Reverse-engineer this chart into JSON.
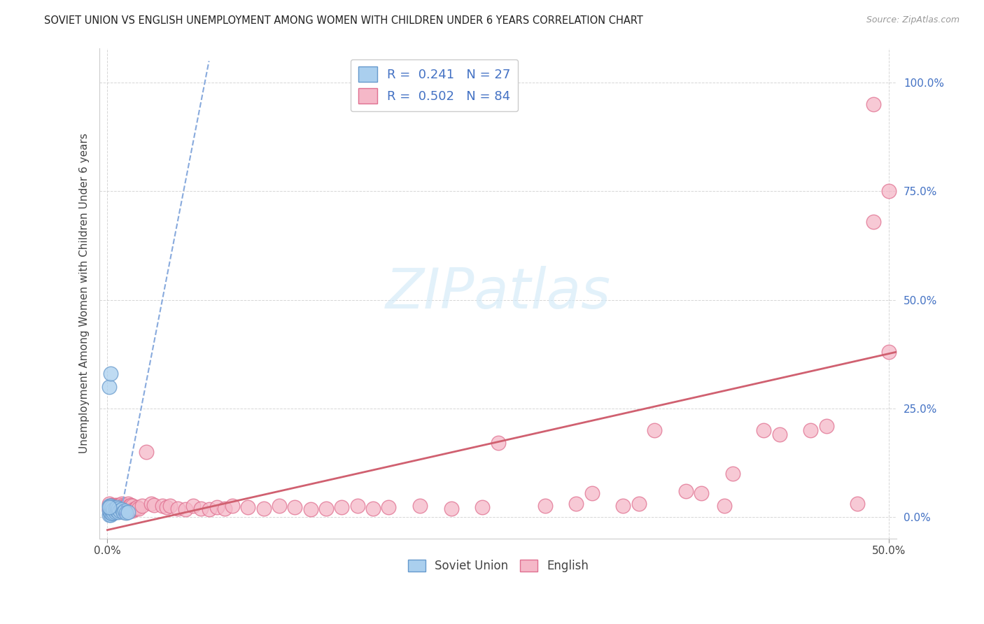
{
  "title": "SOVIET UNION VS ENGLISH UNEMPLOYMENT AMONG WOMEN WITH CHILDREN UNDER 6 YEARS CORRELATION CHART",
  "source": "Source: ZipAtlas.com",
  "ylabel": "Unemployment Among Women with Children Under 6 years",
  "xlim": [
    -0.005,
    0.505
  ],
  "ylim": [
    -0.05,
    1.08
  ],
  "xticks": [
    0.0,
    0.5
  ],
  "xtick_labels": [
    "0.0%",
    "50.0%"
  ],
  "yticks": [
    0.0,
    0.25,
    0.5,
    0.75,
    1.0
  ],
  "ytick_labels": [
    "0.0%",
    "25.0%",
    "50.0%",
    "75.0%",
    "100.0%"
  ],
  "legend_r1": "R =  0.241",
  "legend_n1": "N = 27",
  "legend_r2": "R =  0.502",
  "legend_n2": "N = 84",
  "soviet_color": "#aacfee",
  "soviet_edge_color": "#6699cc",
  "english_color": "#f5b8c8",
  "english_edge_color": "#e07090",
  "trendline_soviet_color": "#88aadd",
  "trendline_english_color": "#d06070",
  "watermark": "ZIPatlas",
  "background_color": "#ffffff",
  "soviet_scatter_x": [
    0.001,
    0.001,
    0.001,
    0.002,
    0.002,
    0.002,
    0.002,
    0.003,
    0.003,
    0.003,
    0.004,
    0.004,
    0.005,
    0.005,
    0.006,
    0.006,
    0.007,
    0.007,
    0.008,
    0.009,
    0.01,
    0.011,
    0.012,
    0.013,
    0.001,
    0.002,
    0.001
  ],
  "soviet_scatter_y": [
    0.005,
    0.015,
    0.025,
    0.005,
    0.01,
    0.02,
    0.025,
    0.008,
    0.015,
    0.022,
    0.01,
    0.018,
    0.012,
    0.02,
    0.015,
    0.022,
    0.012,
    0.02,
    0.015,
    0.018,
    0.012,
    0.015,
    0.01,
    0.012,
    0.3,
    0.33,
    0.022
  ],
  "english_scatter_x": [
    0.001,
    0.001,
    0.002,
    0.002,
    0.003,
    0.003,
    0.004,
    0.004,
    0.005,
    0.005,
    0.006,
    0.006,
    0.007,
    0.007,
    0.008,
    0.008,
    0.009,
    0.009,
    0.01,
    0.01,
    0.011,
    0.011,
    0.012,
    0.012,
    0.013,
    0.013,
    0.014,
    0.014,
    0.015,
    0.015,
    0.016,
    0.016,
    0.017,
    0.018,
    0.019,
    0.02,
    0.022,
    0.025,
    0.028,
    0.03,
    0.035,
    0.038,
    0.04,
    0.045,
    0.05,
    0.055,
    0.06,
    0.065,
    0.07,
    0.075,
    0.08,
    0.09,
    0.1,
    0.11,
    0.12,
    0.13,
    0.14,
    0.15,
    0.16,
    0.17,
    0.18,
    0.2,
    0.22,
    0.24,
    0.25,
    0.28,
    0.3,
    0.31,
    0.33,
    0.34,
    0.35,
    0.37,
    0.38,
    0.395,
    0.4,
    0.42,
    0.43,
    0.45,
    0.46,
    0.48,
    0.49,
    0.5,
    0.49,
    0.5
  ],
  "english_scatter_y": [
    0.018,
    0.03,
    0.01,
    0.025,
    0.018,
    0.028,
    0.015,
    0.025,
    0.018,
    0.028,
    0.015,
    0.025,
    0.018,
    0.028,
    0.015,
    0.028,
    0.018,
    0.03,
    0.015,
    0.028,
    0.018,
    0.025,
    0.015,
    0.025,
    0.018,
    0.03,
    0.015,
    0.025,
    0.018,
    0.028,
    0.015,
    0.025,
    0.018,
    0.02,
    0.022,
    0.02,
    0.025,
    0.15,
    0.03,
    0.028,
    0.025,
    0.022,
    0.025,
    0.02,
    0.018,
    0.025,
    0.02,
    0.018,
    0.022,
    0.02,
    0.025,
    0.022,
    0.02,
    0.025,
    0.022,
    0.018,
    0.02,
    0.022,
    0.025,
    0.02,
    0.022,
    0.025,
    0.02,
    0.022,
    0.17,
    0.025,
    0.03,
    0.055,
    0.025,
    0.03,
    0.2,
    0.06,
    0.055,
    0.025,
    0.1,
    0.2,
    0.19,
    0.2,
    0.21,
    0.03,
    0.95,
    0.38,
    0.68,
    0.75
  ],
  "eng_trend_x0": 0.0,
  "eng_trend_y0": -0.03,
  "eng_trend_x1": 0.505,
  "eng_trend_y1": 0.38,
  "sov_trend_x0": 0.008,
  "sov_trend_y0": 0.0,
  "sov_trend_x1": 0.065,
  "sov_trend_y1": 1.05
}
